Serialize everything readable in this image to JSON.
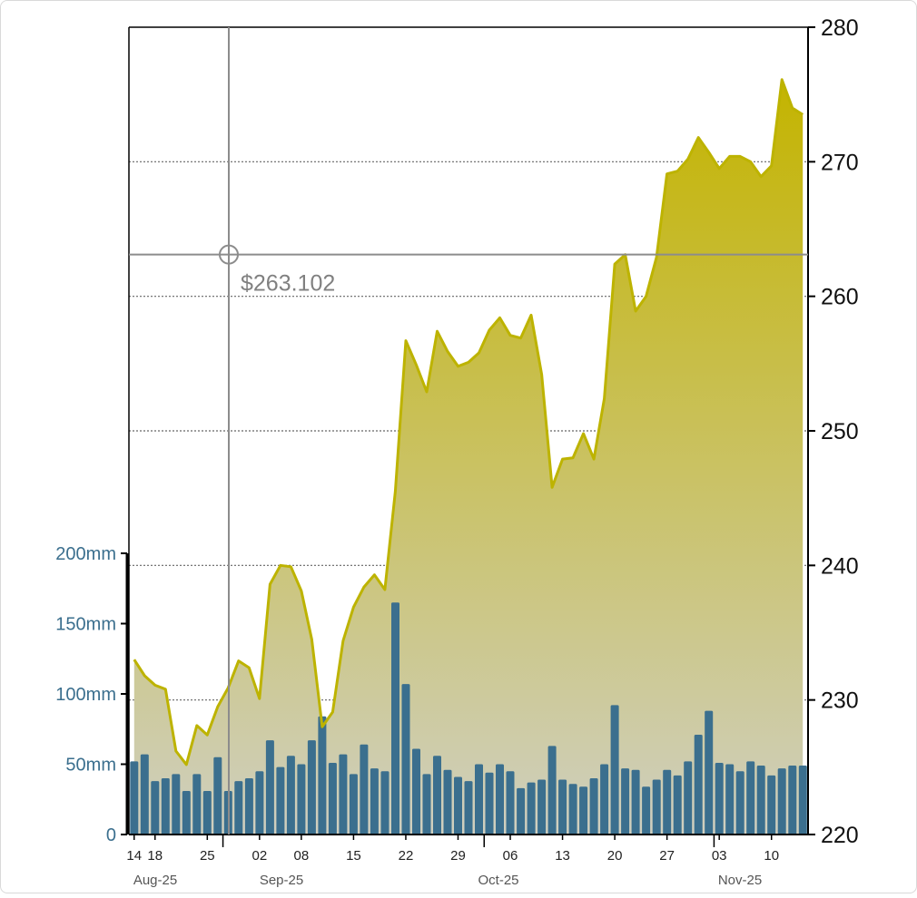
{
  "colors": {
    "price_line": "#bdb300",
    "price_fill_top": "#c4b400",
    "price_fill_bottom": "#cfcfc0",
    "volume_bar": "#3b6f8e",
    "volume_axis": "#3b6f8e",
    "crosshair": "#8c8c8c",
    "grid": "#666666",
    "frame": "#000000"
  },
  "crosshair": {
    "label": "$263.102",
    "price": 263.102,
    "index": 9
  },
  "chart_data": [
    {
      "type": "area",
      "series": [
        {
          "values": [
            233,
            231.8,
            231.1,
            230.8,
            226.2,
            225.2,
            228.1,
            227.4,
            229.5,
            230.9,
            232.9,
            232.4,
            230.1,
            238.6,
            240,
            239.9,
            238.1,
            234.5,
            228,
            229.1,
            234.4,
            236.9,
            238.4,
            239.3,
            238.2,
            245.5,
            256.7,
            254.9,
            252.9,
            257.4,
            255.9,
            254.8,
            255.1,
            255.8,
            257.5,
            258.4,
            257.1,
            256.9,
            258.6,
            254.2,
            245.8,
            247.9,
            248,
            249.8,
            247.9,
            252.4,
            262.4,
            263.1,
            258.9,
            260,
            262.9,
            269.1,
            269.3,
            270.2,
            271.8,
            270.7,
            269.5,
            270.4,
            270.4,
            270,
            268.9,
            269.7,
            276.1,
            274,
            273.5
          ]
        }
      ],
      "y_right": {
        "ticks": [
          "220",
          "230",
          "240",
          "250",
          "260",
          "270",
          "280"
        ],
        "range": [
          220,
          280
        ]
      },
      "x_day_labels": [
        "14",
        "18",
        "25",
        "02",
        "08",
        "15",
        "22",
        "29",
        "06",
        "13",
        "20",
        "27",
        "03",
        "10"
      ],
      "x_month_labels": [
        "Aug-25",
        "Sep-25",
        "Oct-25",
        "Nov-25"
      ],
      "grid": "horizontal dotted"
    },
    {
      "type": "bar",
      "series": [
        {
          "values": [
            52,
            57,
            38,
            40,
            43,
            31,
            43,
            31,
            55,
            31,
            38,
            40,
            45,
            67,
            48,
            56,
            50,
            67,
            84,
            51,
            57,
            43,
            64,
            47,
            45,
            165,
            107,
            61,
            43,
            56,
            46,
            41,
            38,
            50,
            44,
            50,
            45,
            33,
            37,
            39,
            63,
            39,
            36,
            34,
            40,
            50,
            92,
            47,
            46,
            34,
            39,
            46,
            42,
            52,
            71,
            88,
            51,
            50,
            45,
            52,
            49,
            42,
            47,
            49,
            49
          ]
        }
      ],
      "y_left": {
        "ticks": [
          "0",
          "50mm",
          "100mm",
          "150mm",
          "200mm"
        ],
        "range": [
          0,
          200
        ]
      }
    }
  ]
}
